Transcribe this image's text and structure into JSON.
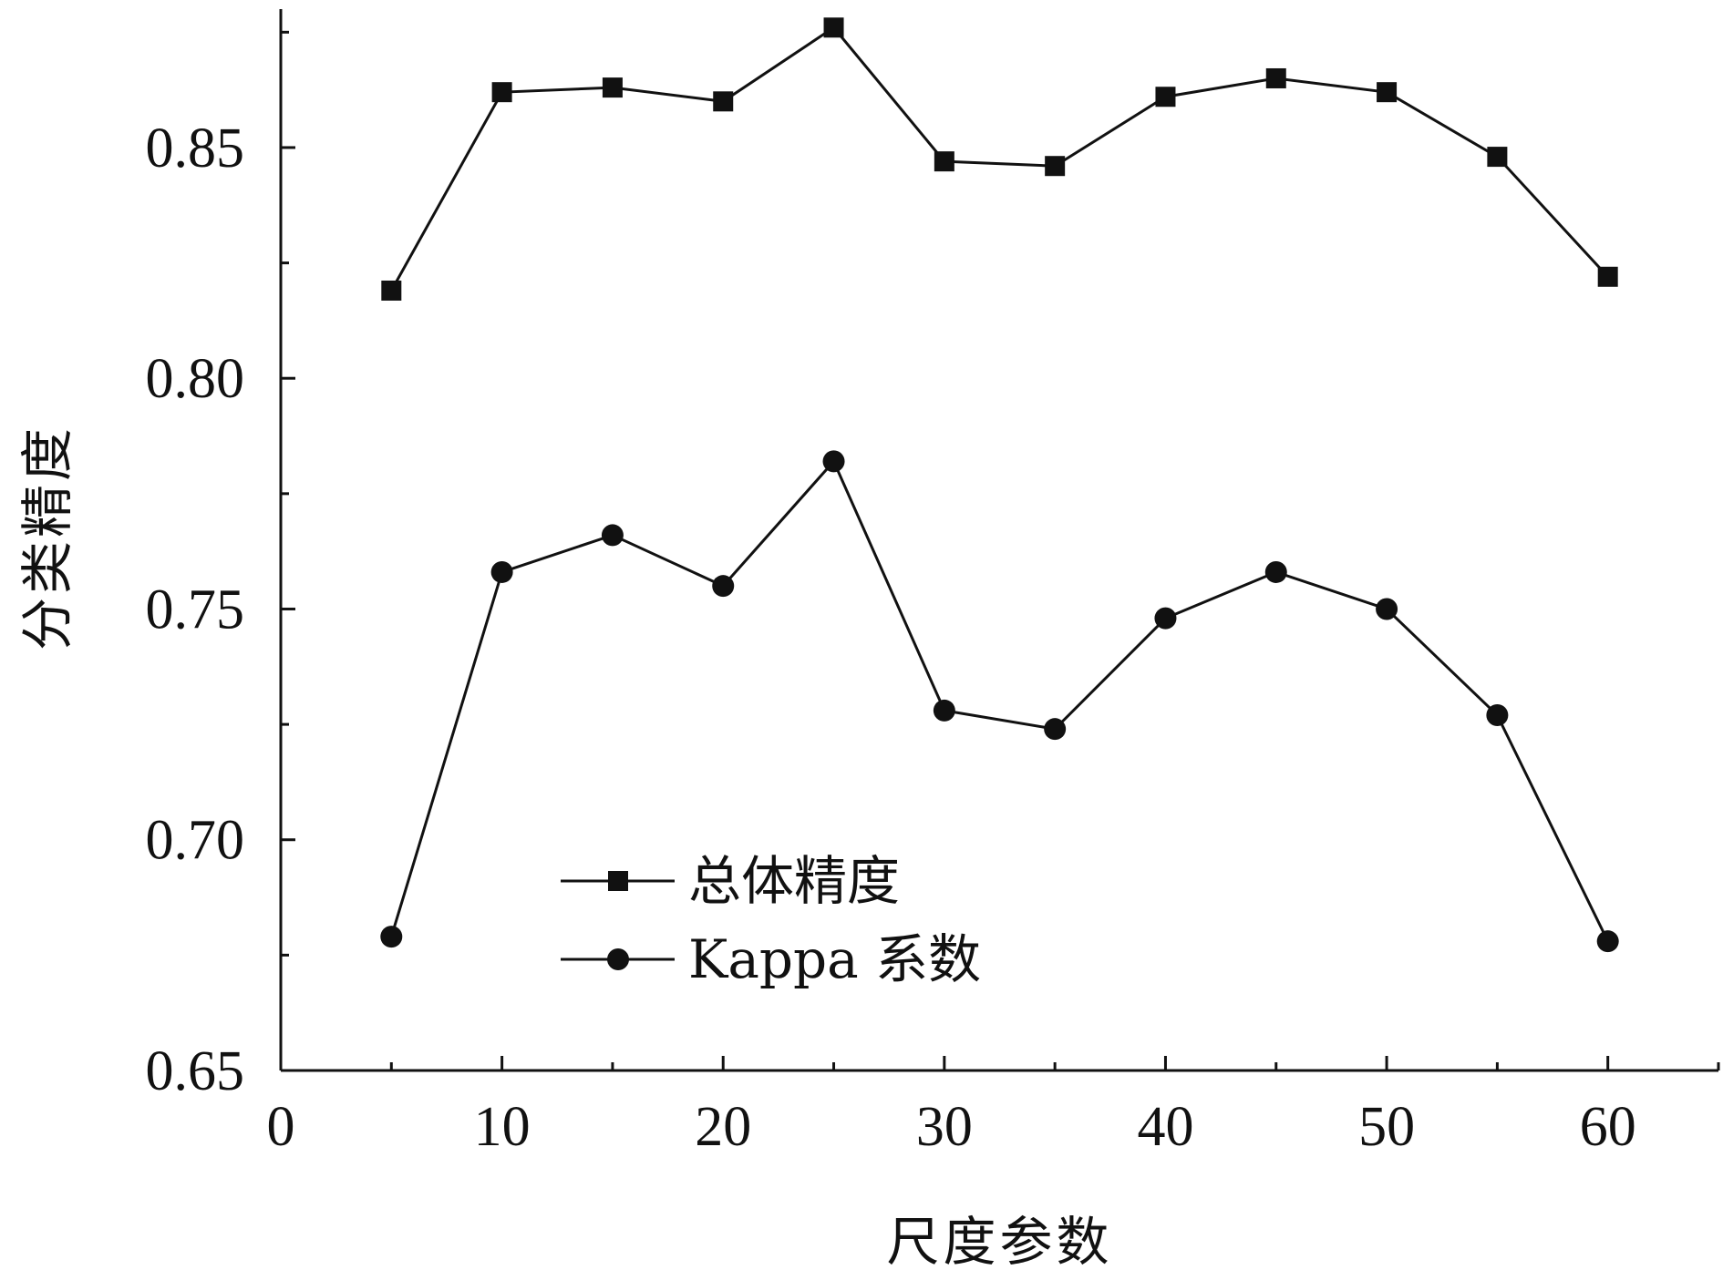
{
  "chart_data": {
    "type": "line",
    "title": "",
    "xlabel": "尺度参数",
    "ylabel": "分类精度",
    "xlim": [
      0,
      65
    ],
    "ylim": [
      0.65,
      0.88
    ],
    "x_ticks": [
      0,
      10,
      20,
      30,
      40,
      50,
      60
    ],
    "y_ticks": [
      0.65,
      0.7,
      0.75,
      0.8,
      0.85
    ],
    "x_tick_labels": [
      "0",
      "10",
      "20",
      "30",
      "40",
      "50",
      "60"
    ],
    "y_tick_labels": [
      "0.65",
      "0.70",
      "0.75",
      "0.80",
      "0.85"
    ],
    "grid": false,
    "legend_position": "bottom-left",
    "x": [
      5,
      10,
      15,
      20,
      25,
      30,
      35,
      40,
      45,
      50,
      55,
      60
    ],
    "series": [
      {
        "name": "总体精度",
        "marker": "square",
        "color": "#111111",
        "values": [
          0.819,
          0.862,
          0.863,
          0.86,
          0.876,
          0.847,
          0.846,
          0.861,
          0.865,
          0.862,
          0.848,
          0.822
        ]
      },
      {
        "name": "Kappa 系数",
        "marker": "circle",
        "color": "#111111",
        "values": [
          0.679,
          0.758,
          0.766,
          0.755,
          0.782,
          0.728,
          0.724,
          0.748,
          0.758,
          0.75,
          0.727,
          0.678
        ]
      }
    ]
  }
}
